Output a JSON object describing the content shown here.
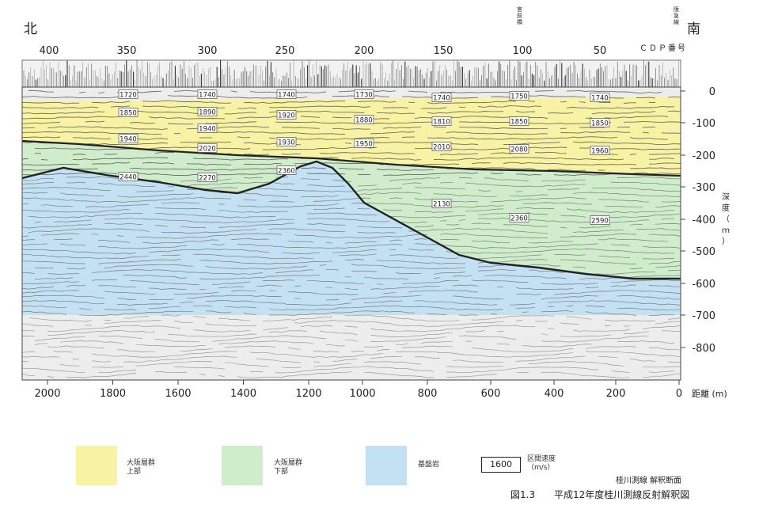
{
  "orientation": {
    "north": "北",
    "south": "南"
  },
  "cdp_axis": {
    "label": "ＣＤＰ番号",
    "ticks": [
      "400",
      "350",
      "300",
      "250",
      "200",
      "150",
      "100",
      "50"
    ]
  },
  "top_markers": [
    {
      "id": "m1",
      "text": "宮前橋"
    },
    {
      "id": "m2",
      "text": "阪急線"
    }
  ],
  "depth_axis": {
    "label": "深度（ｍ）",
    "ticks": [
      "0",
      "-100",
      "-200",
      "-300",
      "-400",
      "-500",
      "-600",
      "-700",
      "-800"
    ]
  },
  "distance_axis": {
    "label": "距離 (m)",
    "ticks": [
      "2000",
      "1800",
      "1600",
      "1400",
      "1200",
      "1000",
      "800",
      "600",
      "400",
      "200",
      "0"
    ]
  },
  "interval_velocities": [
    "1720",
    "1740",
    "1740",
    "1730",
    "1740",
    "1750",
    "1740",
    "1850",
    "1890",
    "1920",
    "1880",
    "1810",
    "1850",
    "1850",
    "1940",
    "1940",
    "2020",
    "1930",
    "1950",
    "2010",
    "2080",
    "1960",
    "2440",
    "2270",
    "2360",
    "2130",
    "2360",
    "2590"
  ],
  "legend": {
    "items": [
      {
        "id": "upper-osaka",
        "text": "大阪層群\n上部",
        "color": "#f7f2a4"
      },
      {
        "id": "lower-osaka",
        "text": "大阪層群\n下部",
        "color": "#cfeccb"
      },
      {
        "id": "basement",
        "text": "基盤岩",
        "color": "#c4e0f3"
      }
    ],
    "velocity_sample": "1600",
    "velocity_label": "区間速度\n（m/s）"
  },
  "caption": {
    "subtitle": "桂川測線  解釈断面",
    "figure_no": "図1.3",
    "title": "平成12年度桂川測線反射解釈図"
  }
}
